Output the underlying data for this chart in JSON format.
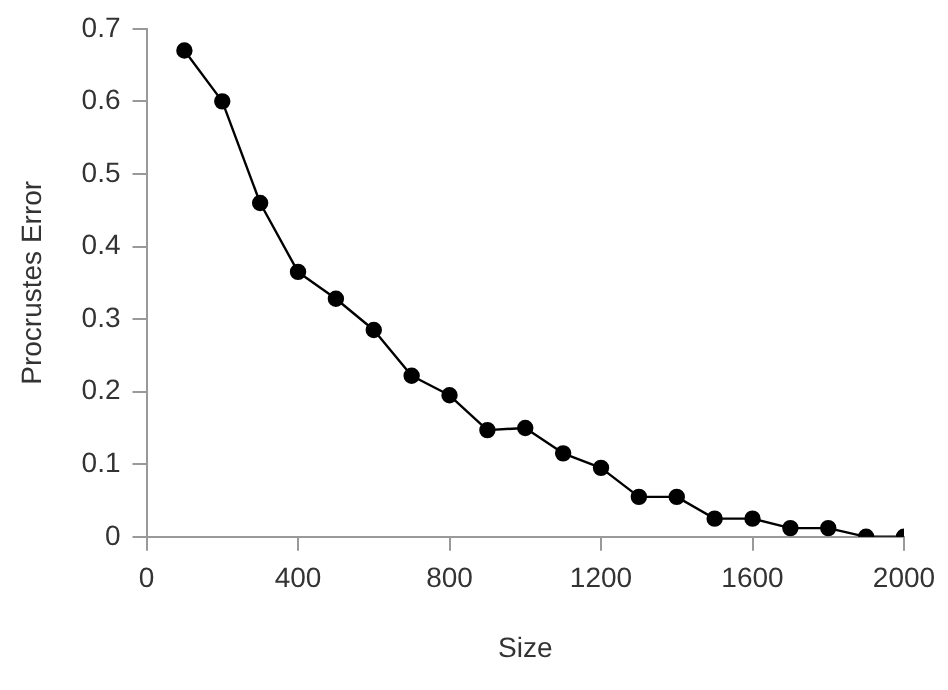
{
  "chart_data": {
    "type": "line",
    "xlabel": "Size",
    "ylabel": "Procrustes Error",
    "x": [
      100,
      200,
      300,
      400,
      500,
      600,
      700,
      800,
      900,
      1000,
      1100,
      1200,
      1300,
      1400,
      1500,
      1600,
      1700,
      1800,
      1900,
      2000
    ],
    "series": [
      {
        "color": "#000000",
        "values": [
          0.67,
          0.6,
          0.46,
          0.365,
          0.328,
          0.285,
          0.222,
          0.195,
          0.147,
          0.15,
          0.115,
          0.095,
          0.055,
          0.055,
          0.025,
          0.025,
          0.012,
          0.012,
          0.0,
          0.0
        ]
      }
    ],
    "xlim": [
      0,
      2000
    ],
    "xticks": [
      0,
      400,
      800,
      1200,
      1600,
      2000
    ],
    "ylim": [
      0,
      0.7
    ],
    "yticks": [
      0,
      0.1,
      0.2,
      0.3,
      0.4,
      0.5,
      0.6,
      0.7
    ],
    "grid": false,
    "legend": false,
    "marker": "circle",
    "line_style": "solid"
  }
}
